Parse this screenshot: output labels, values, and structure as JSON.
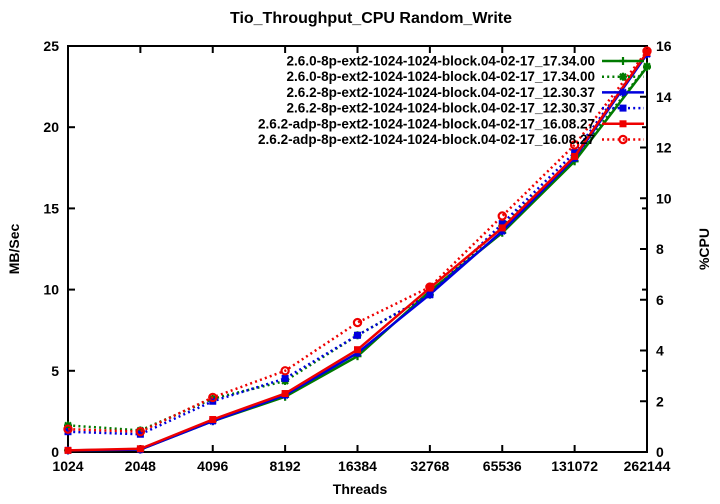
{
  "title": "Tio_Throughput_CPU Random_Write",
  "colors": {
    "foreground": "#000000",
    "background": "#ffffff",
    "green": "#007a00",
    "blue": "#0000dd",
    "red": "#ee0000"
  },
  "axes": {
    "x": {
      "label": "Threads",
      "scale": "log2",
      "tick_labels": [
        "1024",
        "2048",
        "4096",
        "8192",
        "16384",
        "32768",
        "65536",
        "131072",
        "262144"
      ]
    },
    "y_left": {
      "label": "MB/Sec",
      "min": 0,
      "max": 25,
      "ticks": [
        0,
        5,
        10,
        15,
        20,
        25
      ]
    },
    "y_right": {
      "label": "%CPU",
      "min": 0,
      "max": 16,
      "ticks": [
        0,
        2,
        4,
        6,
        8,
        10,
        12,
        14,
        16
      ]
    }
  },
  "legend": {
    "position": "top-right",
    "entries": [
      "2.6.0-8p-ext2-1024-1024-block.04-02-17_17.34.00",
      "2.6.0-8p-ext2-1024-1024-block.04-02-17_17.34.00",
      "2.6.2-8p-ext2-1024-1024-block.04-02-17_12.30.37",
      "2.6.2-8p-ext2-1024-1024-block.04-02-17_12.30.37",
      "2.6.2-adp-8p-ext2-1024-1024-block.04-02-17_16.08.27",
      "2.6.2-adp-8p-ext2-1024-1024-block.04-02-17_16.08.27"
    ]
  },
  "chart_data": {
    "type": "line",
    "title": "Tio_Throughput_CPU Random_Write",
    "xlabel": "Threads",
    "ylabel_left": "MB/Sec",
    "ylabel_right": "%CPU",
    "x_scale": "log2",
    "x": [
      1024,
      2048,
      4096,
      8192,
      16384,
      32768,
      65536,
      131072,
      262144
    ],
    "ylim_left": [
      0,
      25
    ],
    "ylim_right": [
      0,
      16
    ],
    "series": [
      {
        "name": "2.6.0-8p-ext2-1024-1024-block.04-02-17_17.34.00",
        "axis": "left",
        "unit": "MB/Sec",
        "color": "#007a00",
        "line": "solid",
        "marker": "plus",
        "values": [
          0.1,
          0.15,
          1.9,
          3.4,
          5.9,
          9.9,
          13.5,
          17.9,
          23.7
        ]
      },
      {
        "name": "2.6.0-8p-ext2-1024-1024-block.04-02-17_17.34.00",
        "axis": "right",
        "unit": "%CPU",
        "color": "#007a00",
        "line": "dotted",
        "marker": "star",
        "values": [
          1.05,
          0.85,
          2.1,
          2.8,
          4.6,
          6.2,
          8.9,
          11.6,
          15.2
        ]
      },
      {
        "name": "2.6.2-8p-ext2-1024-1024-block.04-02-17_12.30.37",
        "axis": "left",
        "unit": "MB/Sec",
        "color": "#0000dd",
        "line": "solid",
        "marker": "asterisk",
        "values": [
          0.1,
          0.15,
          1.9,
          3.5,
          6.1,
          9.7,
          13.6,
          18.1,
          24.5
        ]
      },
      {
        "name": "2.6.2-8p-ext2-1024-1024-block.04-02-17_12.30.37",
        "axis": "right",
        "unit": "%CPU",
        "color": "#0000dd",
        "line": "dotted",
        "marker": "square",
        "values": [
          0.8,
          0.7,
          2.0,
          2.9,
          4.6,
          6.2,
          9.0,
          11.8,
          15.7
        ]
      },
      {
        "name": "2.6.2-adp-8p-ext2-1024-1024-block.04-02-17_16.08.27",
        "axis": "left",
        "unit": "MB/Sec",
        "color": "#ee0000",
        "line": "solid",
        "marker": "square",
        "values": [
          0.1,
          0.2,
          2.0,
          3.6,
          6.3,
          10.1,
          13.8,
          18.2,
          24.6
        ]
      },
      {
        "name": "2.6.2-adp-8p-ext2-1024-1024-block.04-02-17_16.08.27",
        "axis": "right",
        "unit": "%CPU",
        "color": "#ee0000",
        "line": "dotted",
        "marker": "circle",
        "values": [
          0.9,
          0.8,
          2.15,
          3.2,
          5.1,
          6.5,
          9.3,
          12.1,
          15.8
        ]
      }
    ]
  }
}
